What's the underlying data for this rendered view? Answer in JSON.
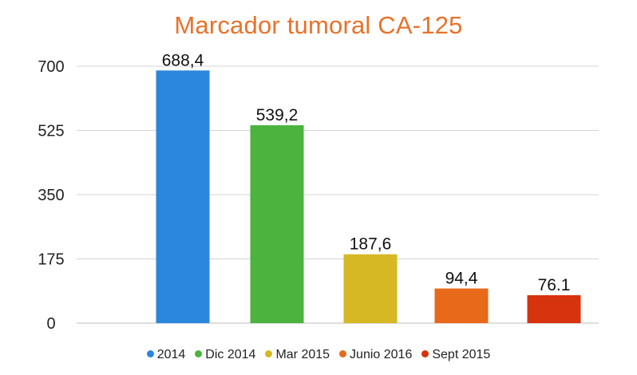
{
  "chart_data": {
    "type": "bar",
    "title": "Marcador tumoral CA-125",
    "categories": [
      "2014",
      "Dic 2014",
      "Mar 2015",
      "Junio 2016",
      "Sept 2015"
    ],
    "values": [
      688.4,
      539.2,
      187.6,
      94.4,
      76.1
    ],
    "data_labels": [
      "688,4",
      "539,2",
      "187,6",
      "94,4",
      "76.1"
    ],
    "colors": [
      "#2b86dd",
      "#4cb33f",
      "#d6b825",
      "#e8691a",
      "#d6330e"
    ],
    "yticks": [
      0,
      175,
      350,
      525,
      700
    ],
    "ylim": [
      0,
      700
    ],
    "xlabel": "",
    "ylabel": "",
    "grid": true,
    "legend": "bottom",
    "title_color": "#e8722a"
  }
}
